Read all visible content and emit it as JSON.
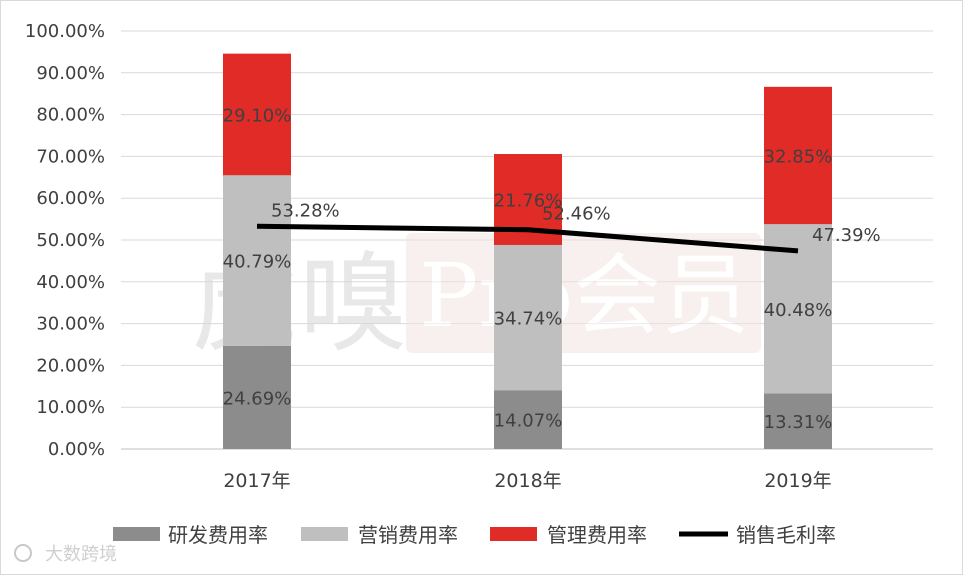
{
  "watermark": {
    "mark_text": "虎嗅",
    "pro_text": "Pro会员",
    "footer_text": "大数跨境"
  },
  "legend": {
    "rd": "研发费用率",
    "marketing": "营销费用率",
    "admin": "管理费用率",
    "gross_margin": "销售毛利率"
  },
  "colors": {
    "rd": "#8c8c8c",
    "marketing": "#bfbfbf",
    "admin": "#e02b27",
    "gross_margin": "#000000",
    "grid": "#d9d9d9"
  },
  "chart_data": {
    "type": "bar",
    "stacked": true,
    "title": "",
    "xlabel": "",
    "ylabel": "",
    "categories": [
      "2017年",
      "2018年",
      "2019年"
    ],
    "ylim": [
      0,
      100
    ],
    "yticks": [
      "0.00%",
      "10.00%",
      "20.00%",
      "30.00%",
      "40.00%",
      "50.00%",
      "60.00%",
      "70.00%",
      "80.00%",
      "90.00%",
      "100.00%"
    ],
    "grid": true,
    "legend_position": "bottom",
    "series": [
      {
        "name": "研发费用率",
        "type": "bar",
        "values": [
          24.69,
          14.07,
          13.31
        ],
        "labels": [
          "24.69%",
          "14.07%",
          "13.31%"
        ]
      },
      {
        "name": "营销费用率",
        "type": "bar",
        "values": [
          40.79,
          34.74,
          40.48
        ],
        "labels": [
          "40.79%",
          "34.74%",
          "40.48%"
        ]
      },
      {
        "name": "管理费用率",
        "type": "bar",
        "values": [
          29.1,
          21.76,
          32.85
        ],
        "labels": [
          "29.10%",
          "21.76%",
          "32.85%"
        ]
      },
      {
        "name": "销售毛利率",
        "type": "line",
        "values": [
          53.28,
          52.46,
          47.39
        ],
        "labels": [
          "53.28%",
          "52.46%",
          "47.39%"
        ]
      }
    ]
  }
}
